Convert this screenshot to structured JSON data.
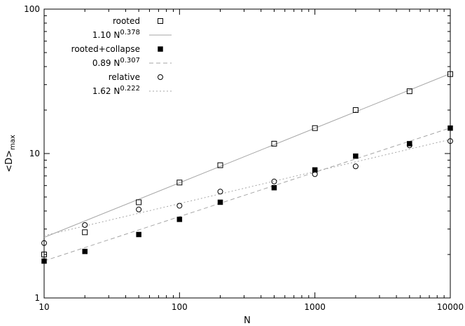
{
  "chart_data": {
    "type": "scatter",
    "xscale": "log",
    "yscale": "log",
    "xlim": [
      10,
      10000
    ],
    "ylim": [
      1,
      100
    ],
    "xlabel": "N",
    "ylabel": "<D>max",
    "xticks": [
      {
        "value": 10,
        "label": "10"
      },
      {
        "value": 100,
        "label": "100"
      },
      {
        "value": 1000,
        "label": "1000"
      },
      {
        "value": 10000,
        "label": "10000"
      }
    ],
    "yticks": [
      {
        "value": 1,
        "label": "1"
      },
      {
        "value": 10,
        "label": "10"
      },
      {
        "value": 100,
        "label": "100"
      }
    ],
    "grid": false,
    "legend_position": "top-left",
    "series": [
      {
        "name": "rooted",
        "kind": "points",
        "marker": "open-square",
        "color": "#000000",
        "x": [
          10,
          20,
          50,
          100,
          200,
          500,
          1000,
          2000,
          5000,
          10000
        ],
        "y": [
          2.0,
          2.85,
          4.6,
          6.3,
          8.3,
          11.7,
          15.0,
          20.0,
          27.0,
          35.5
        ]
      },
      {
        "name_base": "1.10 N",
        "name_exp": "0.378",
        "kind": "fit",
        "coef": 1.1,
        "exp": 0.378,
        "color": "#a6a6a6",
        "dash": "none"
      },
      {
        "name": "rooted+collapse",
        "kind": "points",
        "marker": "filled-square",
        "color": "#000000",
        "x": [
          10,
          20,
          50,
          100,
          200,
          500,
          1000,
          2000,
          5000,
          10000
        ],
        "y": [
          1.8,
          2.1,
          2.75,
          3.5,
          4.6,
          5.8,
          7.7,
          9.6,
          11.7,
          15.0
        ]
      },
      {
        "name_base": "0.89 N",
        "name_exp": "0.307",
        "kind": "fit",
        "coef": 0.89,
        "exp": 0.307,
        "color": "#a6a6a6",
        "dash": "6,4"
      },
      {
        "name": "relative",
        "kind": "points",
        "marker": "open-circle",
        "color": "#000000",
        "x": [
          10,
          20,
          50,
          100,
          200,
          500,
          1000,
          2000,
          5000,
          10000
        ],
        "y": [
          2.4,
          3.2,
          4.1,
          4.35,
          5.45,
          6.4,
          7.2,
          8.15,
          11.4,
          12.2
        ]
      },
      {
        "name_base": "1.62 N",
        "name_exp": "0.222",
        "kind": "fit",
        "coef": 1.62,
        "exp": 0.222,
        "color": "#a6a6a6",
        "dash": "2,3"
      }
    ]
  }
}
